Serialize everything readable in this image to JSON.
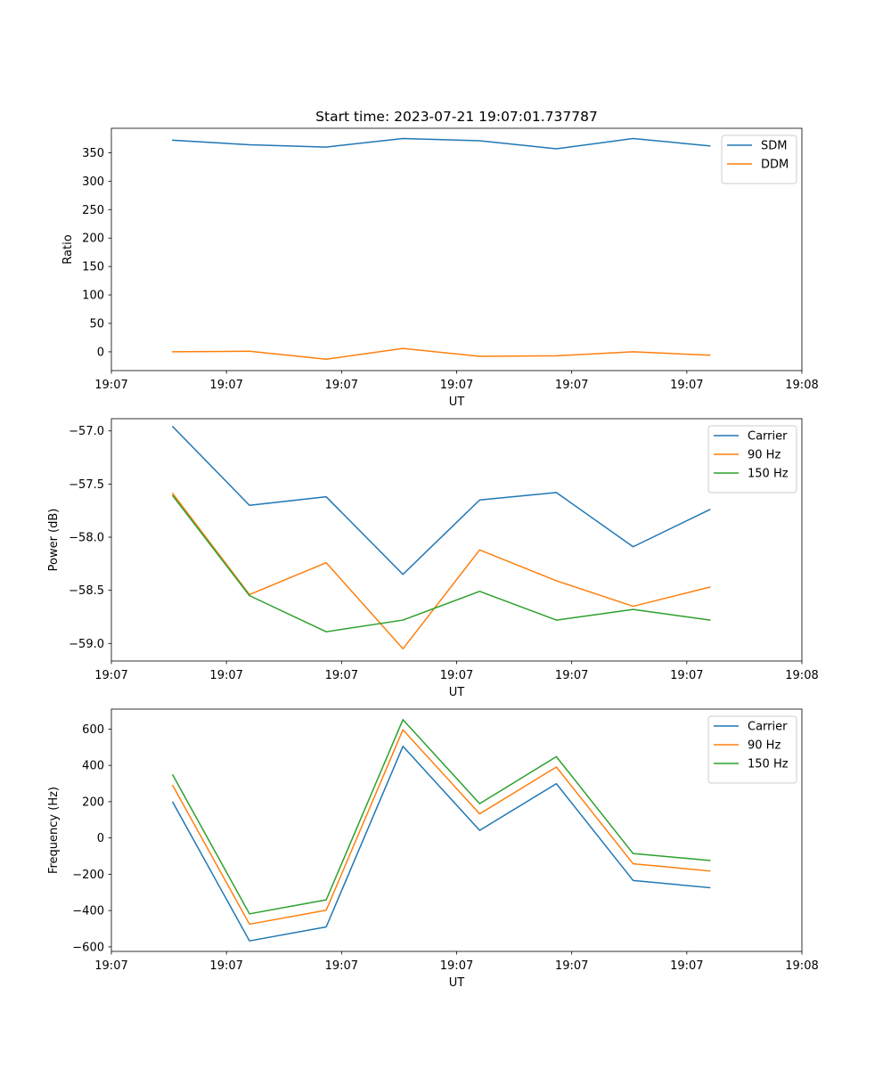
{
  "figure": {
    "title": "Start time: 2023-07-21 19:07:01.737787"
  },
  "colors": {
    "blue": "#1f77b4",
    "orange": "#ff7f0e",
    "green": "#2ca02c"
  },
  "chart_data": [
    {
      "type": "line",
      "name": "ratio",
      "title": "Start time: 2023-07-21 19:07:01.737787",
      "xlabel": "UT",
      "ylabel": "Ratio",
      "x": [
        1,
        2,
        3,
        4,
        5,
        6,
        7,
        8
      ],
      "xlim": [
        0.2,
        9.2
      ],
      "ylim": [
        -33,
        393
      ],
      "x_ticks": [
        {
          "value": 0.2,
          "label": "19:07"
        },
        {
          "value": 1.7,
          "label": "19:07"
        },
        {
          "value": 3.2,
          "label": "19:07"
        },
        {
          "value": 4.7,
          "label": "19:07"
        },
        {
          "value": 6.2,
          "label": "19:07"
        },
        {
          "value": 7.7,
          "label": "19:07"
        },
        {
          "value": 9.2,
          "label": "19:08"
        }
      ],
      "y_ticks": [
        {
          "value": 0,
          "label": "0"
        },
        {
          "value": 50,
          "label": "50"
        },
        {
          "value": 100,
          "label": "100"
        },
        {
          "value": 150,
          "label": "150"
        },
        {
          "value": 200,
          "label": "200"
        },
        {
          "value": 250,
          "label": "250"
        },
        {
          "value": 300,
          "label": "300"
        },
        {
          "value": 350,
          "label": "350"
        }
      ],
      "legend": "top-right",
      "series": [
        {
          "name": "SDM",
          "color": "#1f77b4",
          "values": [
            372,
            364,
            360,
            375,
            371,
            357,
            375,
            362
          ]
        },
        {
          "name": "DDM",
          "color": "#ff7f0e",
          "values": [
            0,
            1,
            -13,
            6,
            -8,
            -7,
            0,
            -6
          ]
        }
      ]
    },
    {
      "type": "line",
      "name": "power",
      "title": "",
      "xlabel": "UT",
      "ylabel": "Power (dB)",
      "x": [
        1,
        2,
        3,
        4,
        5,
        6,
        7,
        8
      ],
      "xlim": [
        0.2,
        9.2
      ],
      "ylim": [
        -59.165,
        -56.885
      ],
      "x_ticks": [
        {
          "value": 0.2,
          "label": "19:07"
        },
        {
          "value": 1.7,
          "label": "19:07"
        },
        {
          "value": 3.2,
          "label": "19:07"
        },
        {
          "value": 4.7,
          "label": "19:07"
        },
        {
          "value": 6.2,
          "label": "19:07"
        },
        {
          "value": 7.7,
          "label": "19:07"
        },
        {
          "value": 9.2,
          "label": "19:08"
        }
      ],
      "y_ticks": [
        {
          "value": -57.0,
          "label": "−57.0"
        },
        {
          "value": -57.5,
          "label": "−57.5"
        },
        {
          "value": -58.0,
          "label": "−58.0"
        },
        {
          "value": -58.5,
          "label": "−58.5"
        },
        {
          "value": -59.0,
          "label": "−59.0"
        }
      ],
      "legend": "top-right",
      "series": [
        {
          "name": "Carrier",
          "color": "#1f77b4",
          "values": [
            -56.96,
            -57.7,
            -57.62,
            -58.35,
            -57.65,
            -57.58,
            -58.09,
            -57.74
          ]
        },
        {
          "name": "90 Hz",
          "color": "#ff7f0e",
          "values": [
            -57.59,
            -58.54,
            -58.24,
            -59.05,
            -58.12,
            -58.41,
            -58.65,
            -58.47
          ]
        },
        {
          "name": "150 Hz",
          "color": "#2ca02c",
          "values": [
            -57.61,
            -58.55,
            -58.89,
            -58.78,
            -58.51,
            -58.78,
            -58.68,
            -58.78
          ]
        }
      ]
    },
    {
      "type": "line",
      "name": "frequency",
      "title": "",
      "xlabel": "UT",
      "ylabel": "Frequency (Hz)",
      "x": [
        1,
        2,
        3,
        4,
        5,
        6,
        7,
        8
      ],
      "xlim": [
        0.2,
        9.2
      ],
      "ylim": [
        -625,
        710
      ],
      "x_ticks": [
        {
          "value": 0.2,
          "label": "19:07"
        },
        {
          "value": 1.7,
          "label": "19:07"
        },
        {
          "value": 3.2,
          "label": "19:07"
        },
        {
          "value": 4.7,
          "label": "19:07"
        },
        {
          "value": 6.2,
          "label": "19:07"
        },
        {
          "value": 7.7,
          "label": "19:07"
        },
        {
          "value": 9.2,
          "label": "19:08"
        }
      ],
      "y_ticks": [
        {
          "value": -600,
          "label": "−600"
        },
        {
          "value": -400,
          "label": "−400"
        },
        {
          "value": -200,
          "label": "−200"
        },
        {
          "value": 0,
          "label": "0"
        },
        {
          "value": 200,
          "label": "200"
        },
        {
          "value": 400,
          "label": "400"
        },
        {
          "value": 600,
          "label": "600"
        }
      ],
      "legend": "top-right",
      "series": [
        {
          "name": "Carrier",
          "color": "#1f77b4",
          "values": [
            197,
            -567,
            -490,
            505,
            42,
            299,
            -234,
            -274
          ]
        },
        {
          "name": "90 Hz",
          "color": "#ff7f0e",
          "values": [
            289,
            -475,
            -398,
            596,
            133,
            391,
            -142,
            -182
          ]
        },
        {
          "name": "150 Hz",
          "color": "#2ca02c",
          "values": [
            347,
            -418,
            -341,
            652,
            189,
            448,
            -86,
            -124
          ]
        }
      ]
    }
  ]
}
